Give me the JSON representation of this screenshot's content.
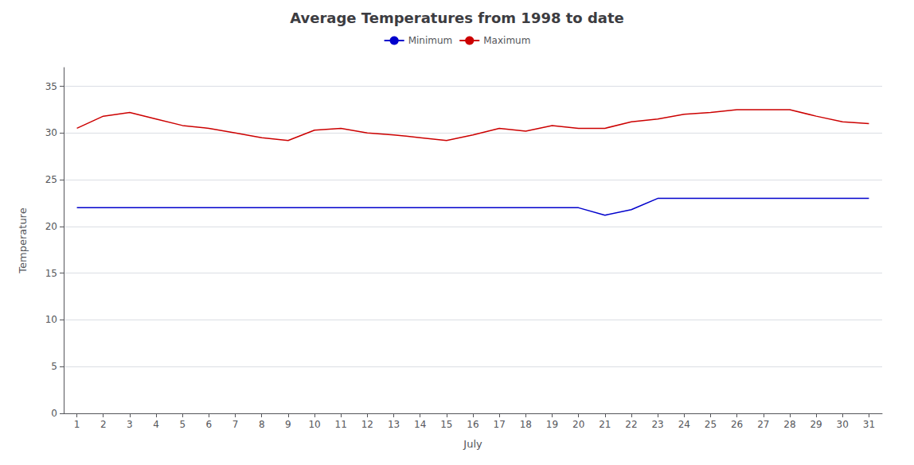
{
  "chart_data": {
    "type": "line",
    "title": "Average Temperatures from 1998 to date",
    "xlabel": "July",
    "ylabel": "Temperature",
    "x": [
      1,
      2,
      3,
      4,
      5,
      6,
      7,
      8,
      9,
      10,
      11,
      12,
      13,
      14,
      15,
      16,
      17,
      18,
      19,
      20,
      21,
      22,
      23,
      24,
      25,
      26,
      27,
      28,
      29,
      30,
      31
    ],
    "series": [
      {
        "name": "Minimum",
        "color": "#0000cc",
        "values": [
          22.0,
          22.0,
          22.0,
          22.0,
          22.0,
          22.0,
          22.0,
          22.0,
          22.0,
          22.0,
          22.0,
          22.0,
          22.0,
          22.0,
          22.0,
          22.0,
          22.0,
          22.0,
          22.0,
          22.0,
          21.2,
          21.8,
          23.0,
          23.0,
          23.0,
          23.0,
          23.0,
          23.0,
          23.0,
          23.0,
          23.0
        ]
      },
      {
        "name": "Maximum",
        "color": "#cc0000",
        "values": [
          30.5,
          31.8,
          32.2,
          31.5,
          30.8,
          30.5,
          30.0,
          29.5,
          29.2,
          30.3,
          30.5,
          30.0,
          29.8,
          29.5,
          29.2,
          29.8,
          30.5,
          30.2,
          30.8,
          30.5,
          30.5,
          31.2,
          31.5,
          32.0,
          32.2,
          32.5,
          32.5,
          32.5,
          31.8,
          31.2,
          31.0
        ]
      }
    ],
    "xlim": [
      0.5,
      31.5
    ],
    "xticks": [
      1,
      2,
      3,
      4,
      5,
      6,
      7,
      8,
      9,
      10,
      11,
      12,
      13,
      14,
      15,
      16,
      17,
      18,
      19,
      20,
      21,
      22,
      23,
      24,
      25,
      26,
      27,
      28,
      29,
      30,
      31
    ],
    "ylim": [
      0,
      37
    ],
    "yticks": [
      0,
      5,
      10,
      15,
      20,
      25,
      30,
      35
    ],
    "grid": "y",
    "legend": "top"
  }
}
